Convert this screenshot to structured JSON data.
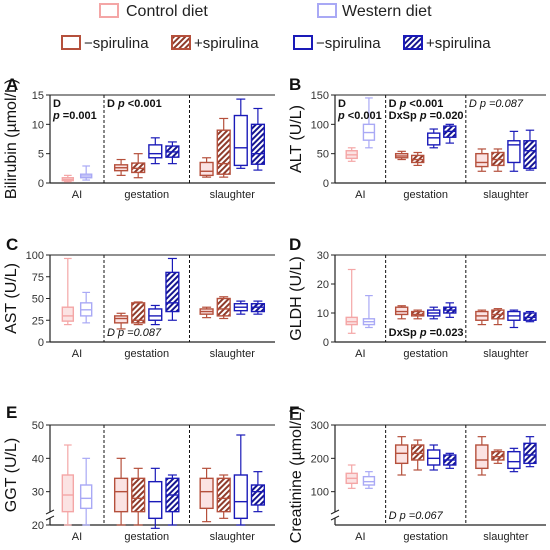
{
  "legend": {
    "row1": [
      {
        "label": "Control diet",
        "color": "#f4a6a6",
        "pattern": "solid"
      },
      {
        "label": "Western diet",
        "color": "#a9a9f5",
        "pattern": "solid"
      }
    ],
    "row2": [
      {
        "label": "−spirulina",
        "color": "#b5503c",
        "pattern": "open"
      },
      {
        "label": "+spirulina",
        "color": "#b5503c",
        "pattern": "hatch"
      },
      {
        "label": "−spirulina",
        "color": "#1a1ab8",
        "pattern": "open"
      },
      {
        "label": "+spirulina",
        "color": "#1a1ab8",
        "pattern": "hatch"
      }
    ]
  },
  "colors": {
    "control_light": "#f4a6a6",
    "western_light": "#a9a9f5",
    "control_dark": "#b5503c",
    "western_dark": "#1a1ab8",
    "box_fill_control": "#fbe3e3"
  },
  "chart_data": [
    {
      "panel": "A",
      "type": "boxplot",
      "ylabel": "Bilirubin (µmol/L)",
      "ylim": [
        0,
        15
      ],
      "yticks": [
        0,
        5,
        10,
        15
      ],
      "axis_break": false,
      "groups": [
        "AI",
        "gestation",
        "slaughter"
      ],
      "annotations": [
        {
          "group": 0,
          "lines": [
            [
              {
                "t": "D",
                "b": true
              }
            ],
            [
              {
                "t": "p",
                "b": true,
                "i": true
              },
              {
                "t": " =0.001",
                "b": true
              }
            ]
          ]
        },
        {
          "group": 1,
          "lines": [
            [
              {
                "t": "D ",
                "b": true
              },
              {
                "t": "p",
                "b": true,
                "i": true
              },
              {
                "t": " <0.001",
                "b": true
              }
            ]
          ]
        }
      ],
      "boxes": [
        {
          "group": 0,
          "series": "control",
          "min": 0.2,
          "q1": 0.4,
          "median": 0.6,
          "q3": 0.9,
          "max": 1.3
        },
        {
          "group": 0,
          "series": "western",
          "min": 0.5,
          "q1": 0.9,
          "median": 1.2,
          "q3": 1.5,
          "max": 2.9
        },
        {
          "group": 1,
          "series": "control-spirulina",
          "min": 1.3,
          "q1": 2.1,
          "median": 2.6,
          "q3": 3.1,
          "max": 4.0
        },
        {
          "group": 1,
          "series": "control+spirulina",
          "min": 0.9,
          "q1": 1.8,
          "median": 2.5,
          "q3": 3.4,
          "max": 5.0
        },
        {
          "group": 1,
          "series": "western-spirulina",
          "min": 3.3,
          "q1": 4.3,
          "median": 5.0,
          "q3": 6.5,
          "max": 7.7
        },
        {
          "group": 1,
          "series": "western+spirulina",
          "min": 3.3,
          "q1": 4.4,
          "median": 5.3,
          "q3": 6.3,
          "max": 7.0
        },
        {
          "group": 2,
          "series": "control-spirulina",
          "min": 1.0,
          "q1": 1.3,
          "median": 2.0,
          "q3": 3.5,
          "max": 4.3
        },
        {
          "group": 2,
          "series": "control+spirulina",
          "min": 1.0,
          "q1": 1.5,
          "median": 3.3,
          "q3": 9.0,
          "max": 11.0
        },
        {
          "group": 2,
          "series": "western-spirulina",
          "min": 2.5,
          "q1": 3.0,
          "median": 6.0,
          "q3": 11.5,
          "max": 14.3
        },
        {
          "group": 2,
          "series": "western+spirulina",
          "min": 2.2,
          "q1": 3.2,
          "median": 5.0,
          "q3": 10.0,
          "max": 12.7
        }
      ]
    },
    {
      "panel": "B",
      "type": "boxplot",
      "ylabel": "ALT (U/L)",
      "ylim": [
        0,
        150
      ],
      "yticks": [
        0,
        50,
        100,
        150
      ],
      "axis_break": false,
      "groups": [
        "AI",
        "gestation",
        "slaughter"
      ],
      "annotations": [
        {
          "group": 0,
          "lines": [
            [
              {
                "t": "D",
                "b": true
              }
            ],
            [
              {
                "t": "p",
                "b": true,
                "i": true
              },
              {
                "t": " <0.001",
                "b": true
              }
            ]
          ]
        },
        {
          "group": 1,
          "lines": [
            [
              {
                "t": "D ",
                "b": true
              },
              {
                "t": "p",
                "b": true,
                "i": true
              },
              {
                "t": " <0.001",
                "b": true
              }
            ],
            [
              {
                "t": "DxSp ",
                "b": true
              },
              {
                "t": "p",
                "b": true,
                "i": true
              },
              {
                "t": " =0.020",
                "b": true
              }
            ]
          ]
        },
        {
          "group": 2,
          "lines": [
            [
              {
                "t": "D ",
                "i": true
              },
              {
                "t": "p",
                "i": true
              },
              {
                "t": " =0.087",
                "i": true
              }
            ]
          ]
        }
      ],
      "boxes": [
        {
          "group": 0,
          "series": "control",
          "min": 37,
          "q1": 42,
          "median": 48,
          "q3": 55,
          "max": 60
        },
        {
          "group": 0,
          "series": "western",
          "min": 60,
          "q1": 73,
          "median": 86,
          "q3": 100,
          "max": 145
        },
        {
          "group": 1,
          "series": "control-spirulina",
          "min": 40,
          "q1": 43,
          "median": 46,
          "q3": 50,
          "max": 54
        },
        {
          "group": 1,
          "series": "control+spirulina",
          "min": 30,
          "q1": 35,
          "median": 40,
          "q3": 47,
          "max": 52
        },
        {
          "group": 1,
          "series": "western-spirulina",
          "min": 60,
          "q1": 65,
          "median": 77,
          "q3": 85,
          "max": 92
        },
        {
          "group": 1,
          "series": "western+spirulina",
          "min": 68,
          "q1": 78,
          "median": 88,
          "q3": 97,
          "max": 100
        },
        {
          "group": 2,
          "series": "control-spirulina",
          "min": 20,
          "q1": 28,
          "median": 35,
          "q3": 50,
          "max": 58
        },
        {
          "group": 2,
          "series": "control+spirulina",
          "min": 20,
          "q1": 30,
          "median": 40,
          "q3": 52,
          "max": 58
        },
        {
          "group": 2,
          "series": "western-spirulina",
          "min": 20,
          "q1": 35,
          "median": 65,
          "q3": 72,
          "max": 88
        },
        {
          "group": 2,
          "series": "western+spirulina",
          "min": 22,
          "q1": 25,
          "median": 55,
          "q3": 72,
          "max": 90
        }
      ]
    },
    {
      "panel": "C",
      "type": "boxplot",
      "ylabel": "AST (U/L)",
      "ylim": [
        0,
        100
      ],
      "yticks": [
        0,
        25,
        50,
        75,
        100
      ],
      "axis_break": false,
      "groups": [
        "AI",
        "gestation",
        "slaughter"
      ],
      "annotations": [
        {
          "group": 1,
          "position": "bottom",
          "lines": [
            [
              {
                "t": "D ",
                "i": true
              },
              {
                "t": "p",
                "i": true
              },
              {
                "t": " =0.087",
                "i": true
              }
            ]
          ]
        }
      ],
      "boxes": [
        {
          "group": 0,
          "series": "control",
          "min": 20,
          "q1": 24,
          "median": 30,
          "q3": 40,
          "max": 96
        },
        {
          "group": 0,
          "series": "western",
          "min": 22,
          "q1": 30,
          "median": 37,
          "q3": 45,
          "max": 57
        },
        {
          "group": 1,
          "series": "control-spirulina",
          "min": 15,
          "q1": 22,
          "median": 27,
          "q3": 30,
          "max": 33
        },
        {
          "group": 1,
          "series": "control+spirulina",
          "min": 20,
          "q1": 22,
          "median": 25,
          "q3": 45,
          "max": 46
        },
        {
          "group": 1,
          "series": "western-spirulina",
          "min": 20,
          "q1": 25,
          "median": 30,
          "q3": 38,
          "max": 42
        },
        {
          "group": 1,
          "series": "western+spirulina",
          "min": 25,
          "q1": 35,
          "median": 45,
          "q3": 80,
          "max": 96
        },
        {
          "group": 2,
          "series": "control-spirulina",
          "min": 28,
          "q1": 32,
          "median": 35,
          "q3": 38,
          "max": 40
        },
        {
          "group": 2,
          "series": "control+spirulina",
          "min": 27,
          "q1": 30,
          "median": 38,
          "q3": 50,
          "max": 52
        },
        {
          "group": 2,
          "series": "western-spirulina",
          "min": 32,
          "q1": 36,
          "median": 40,
          "q3": 44,
          "max": 47
        },
        {
          "group": 2,
          "series": "western+spirulina",
          "min": 32,
          "q1": 35,
          "median": 40,
          "q3": 44,
          "max": 47
        }
      ]
    },
    {
      "panel": "D",
      "type": "boxplot",
      "ylabel": "GLDH (U/L)",
      "ylim": [
        0,
        30
      ],
      "yticks": [
        0,
        10,
        20,
        30
      ],
      "axis_break": false,
      "groups": [
        "AI",
        "gestation",
        "slaughter"
      ],
      "annotations": [
        {
          "group": 1,
          "position": "bottom",
          "lines": [
            [
              {
                "t": "DxSp ",
                "b": true
              },
              {
                "t": "p",
                "b": true,
                "i": true
              },
              {
                "t": " =0.023",
                "b": true
              }
            ]
          ]
        }
      ],
      "boxes": [
        {
          "group": 0,
          "series": "control",
          "min": 3,
          "q1": 6,
          "median": 7,
          "q3": 8.5,
          "max": 25
        },
        {
          "group": 0,
          "series": "western",
          "min": 5,
          "q1": 6,
          "median": 7,
          "q3": 8,
          "max": 16
        },
        {
          "group": 1,
          "series": "control-spirulina",
          "min": 8,
          "q1": 9.5,
          "median": 10.5,
          "q3": 12,
          "max": 12.5
        },
        {
          "group": 1,
          "series": "control+spirulina",
          "min": 8,
          "q1": 9,
          "median": 9.5,
          "q3": 10.5,
          "max": 11
        },
        {
          "group": 1,
          "series": "western-spirulina",
          "min": 8,
          "q1": 9,
          "median": 10,
          "q3": 11,
          "max": 12
        },
        {
          "group": 1,
          "series": "western+spirulina",
          "min": 8.5,
          "q1": 10,
          "median": 11,
          "q3": 12,
          "max": 13.5
        },
        {
          "group": 2,
          "series": "control-spirulina",
          "min": 6,
          "q1": 7.5,
          "median": 9,
          "q3": 10.5,
          "max": 11
        },
        {
          "group": 2,
          "series": "control+spirulina",
          "min": 6,
          "q1": 8,
          "median": 9.5,
          "q3": 11,
          "max": 11.5
        },
        {
          "group": 2,
          "series": "western-spirulina",
          "min": 5,
          "q1": 7.5,
          "median": 9,
          "q3": 10.5,
          "max": 11
        },
        {
          "group": 2,
          "series": "western+spirulina",
          "min": 7,
          "q1": 7.5,
          "median": 8.5,
          "q3": 10,
          "max": 10.5
        }
      ]
    },
    {
      "panel": "E",
      "type": "boxplot",
      "ylabel": "GGT (U/L)",
      "ylim": [
        20,
        50
      ],
      "yticks": [
        20,
        30,
        40,
        50
      ],
      "axis_break": true,
      "groups": [
        "AI",
        "gestation",
        "slaughter"
      ],
      "annotations": [],
      "boxes": [
        {
          "group": 0,
          "series": "control",
          "min": 20,
          "q1": 24,
          "median": 29,
          "q3": 35,
          "max": 44
        },
        {
          "group": 0,
          "series": "western",
          "min": 20,
          "q1": 25,
          "median": 28,
          "q3": 32,
          "max": 40
        },
        {
          "group": 1,
          "series": "control-spirulina",
          "min": 20,
          "q1": 24,
          "median": 30,
          "q3": 34,
          "max": 40
        },
        {
          "group": 1,
          "series": "control+spirulina",
          "min": 20,
          "q1": 24,
          "median": 28,
          "q3": 34,
          "max": 37
        },
        {
          "group": 1,
          "series": "western-spirulina",
          "min": 19,
          "q1": 22,
          "median": 27,
          "q3": 33,
          "max": 37
        },
        {
          "group": 1,
          "series": "western+spirulina",
          "min": 20,
          "q1": 24,
          "median": 29,
          "q3": 34,
          "max": 35
        },
        {
          "group": 2,
          "series": "control-spirulina",
          "min": 21,
          "q1": 25,
          "median": 30,
          "q3": 34,
          "max": 37
        },
        {
          "group": 2,
          "series": "control+spirulina",
          "min": 22,
          "q1": 24,
          "median": 28,
          "q3": 34,
          "max": 35
        },
        {
          "group": 2,
          "series": "western-spirulina",
          "min": 20,
          "q1": 22,
          "median": 27,
          "q3": 35,
          "max": 47
        },
        {
          "group": 2,
          "series": "western+spirulina",
          "min": 24,
          "q1": 26,
          "median": 30,
          "q3": 32,
          "max": 36
        }
      ]
    },
    {
      "panel": "F",
      "type": "boxplot",
      "ylabel": "Creatinine (µmol/L)",
      "ylim": [
        0,
        300
      ],
      "yticks": [
        100,
        200,
        300
      ],
      "axis_break": true,
      "groups": [
        "AI",
        "gestation",
        "slaughter"
      ],
      "annotations": [
        {
          "group": 1,
          "position": "bottom",
          "lines": [
            [
              {
                "t": "D ",
                "i": true
              },
              {
                "t": "p",
                "i": true
              },
              {
                "t": " =0.067",
                "i": true
              }
            ]
          ]
        }
      ],
      "boxes": [
        {
          "group": 0,
          "series": "control",
          "min": 110,
          "q1": 125,
          "median": 140,
          "q3": 155,
          "max": 180
        },
        {
          "group": 0,
          "series": "western",
          "min": 110,
          "q1": 120,
          "median": 130,
          "q3": 145,
          "max": 160
        },
        {
          "group": 1,
          "series": "control-spirulina",
          "min": 150,
          "q1": 185,
          "median": 215,
          "q3": 240,
          "max": 265
        },
        {
          "group": 1,
          "series": "control+spirulina",
          "min": 165,
          "q1": 195,
          "median": 215,
          "q3": 240,
          "max": 255
        },
        {
          "group": 1,
          "series": "western-spirulina",
          "min": 165,
          "q1": 180,
          "median": 200,
          "q3": 225,
          "max": 240
        },
        {
          "group": 1,
          "series": "western+spirulina",
          "min": 170,
          "q1": 180,
          "median": 195,
          "q3": 210,
          "max": 215
        },
        {
          "group": 2,
          "series": "control-spirulina",
          "min": 150,
          "q1": 170,
          "median": 195,
          "q3": 240,
          "max": 265
        },
        {
          "group": 2,
          "series": "control+spirulina",
          "min": 185,
          "q1": 195,
          "median": 205,
          "q3": 220,
          "max": 225
        },
        {
          "group": 2,
          "series": "western-spirulina",
          "min": 160,
          "q1": 170,
          "median": 190,
          "q3": 220,
          "max": 230
        },
        {
          "group": 2,
          "series": "western+spirulina",
          "min": 175,
          "q1": 185,
          "median": 210,
          "q3": 245,
          "max": 265
        }
      ]
    }
  ]
}
